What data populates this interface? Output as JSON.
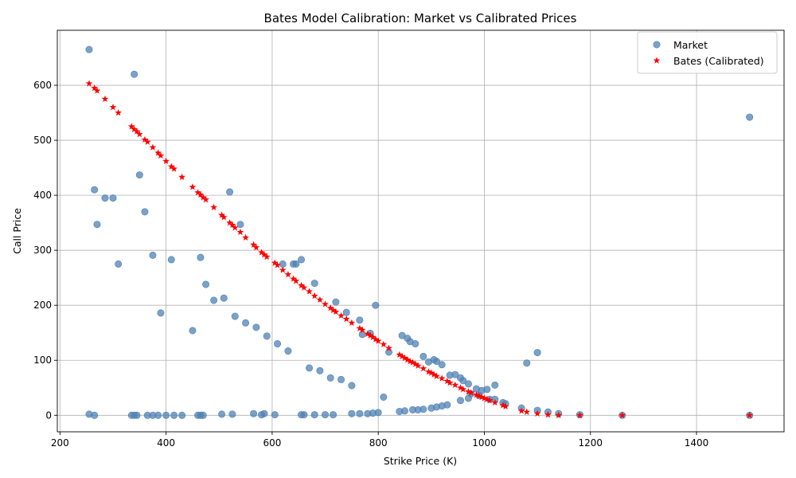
{
  "chart_data": {
    "type": "scatter",
    "title": "Bates Model Calibration: Market vs Calibrated Prices",
    "xlabel": "Strike Price (K)",
    "ylabel": "Call Price",
    "xlim": [
      195,
      1565
    ],
    "ylim": [
      -30,
      700
    ],
    "xticks": [
      200,
      400,
      600,
      800,
      1000,
      1200,
      1400
    ],
    "yticks": [
      0,
      100,
      200,
      300,
      400,
      500,
      600
    ],
    "grid": true,
    "legend_position": "upper-right",
    "series": [
      {
        "name": "Market",
        "marker": "circle",
        "color": "#4f81b4",
        "points": [
          [
            255,
            665
          ],
          [
            340,
            620
          ],
          [
            1500,
            542
          ],
          [
            350,
            437
          ],
          [
            265,
            410
          ],
          [
            520,
            406
          ],
          [
            285,
            395
          ],
          [
            300,
            395
          ],
          [
            360,
            370
          ],
          [
            270,
            347
          ],
          [
            540,
            347
          ],
          [
            375,
            291
          ],
          [
            465,
            287
          ],
          [
            410,
            283
          ],
          [
            655,
            283
          ],
          [
            310,
            275
          ],
          [
            620,
            275
          ],
          [
            640,
            275
          ],
          [
            645,
            275
          ],
          [
            680,
            240
          ],
          [
            475,
            238
          ],
          [
            509,
            213
          ],
          [
            490,
            209
          ],
          [
            720,
            206
          ],
          [
            795,
            200
          ],
          [
            740,
            187
          ],
          [
            390,
            186
          ],
          [
            530,
            180
          ],
          [
            765,
            173
          ],
          [
            550,
            168
          ],
          [
            570,
            160
          ],
          [
            450,
            154
          ],
          [
            785,
            149
          ],
          [
            770,
            147
          ],
          [
            845,
            145
          ],
          [
            590,
            144
          ],
          [
            855,
            140
          ],
          [
            860,
            134
          ],
          [
            610,
            130
          ],
          [
            870,
            130
          ],
          [
            630,
            117
          ],
          [
            820,
            115
          ],
          [
            1100,
            114
          ],
          [
            885,
            107
          ],
          [
            905,
            101
          ],
          [
            895,
            97
          ],
          [
            910,
            98
          ],
          [
            1080,
            95
          ],
          [
            920,
            92
          ],
          [
            670,
            86
          ],
          [
            690,
            81
          ],
          [
            945,
            74
          ],
          [
            935,
            73
          ],
          [
            955,
            68
          ],
          [
            710,
            68
          ],
          [
            730,
            65
          ],
          [
            960,
            63
          ],
          [
            970,
            57
          ],
          [
            1020,
            55
          ],
          [
            750,
            54
          ],
          [
            985,
            48
          ],
          [
            1005,
            47
          ],
          [
            995,
            45
          ],
          [
            975,
            39
          ],
          [
            990,
            36
          ],
          [
            810,
            33
          ],
          [
            970,
            31
          ],
          [
            1010,
            29
          ],
          [
            1020,
            29
          ],
          [
            955,
            27
          ],
          [
            1035,
            23
          ],
          [
            1040,
            21
          ],
          [
            930,
            19
          ],
          [
            920,
            17
          ],
          [
            910,
            15
          ],
          [
            1070,
            13
          ],
          [
            900,
            13
          ],
          [
            885,
            11
          ],
          [
            875,
            10
          ],
          [
            865,
            10
          ],
          [
            850,
            8
          ],
          [
            840,
            7
          ],
          [
            1100,
            9
          ],
          [
            1120,
            6
          ],
          [
            800,
            5
          ],
          [
            790,
            4
          ],
          [
            780,
            3
          ],
          [
            765,
            3
          ],
          [
            750,
            3
          ],
          [
            1140,
            3
          ],
          [
            565,
            3
          ],
          [
            585,
            3
          ],
          [
            505,
            2
          ],
          [
            525,
            2
          ],
          [
            580,
            1
          ],
          [
            605,
            1
          ],
          [
            655,
            1
          ],
          [
            660,
            1
          ],
          [
            680,
            1
          ],
          [
            700,
            1
          ],
          [
            715,
            1
          ],
          [
            1180,
            1
          ],
          [
            1260,
            0
          ],
          [
            255,
            2
          ],
          [
            265,
            0
          ],
          [
            335,
            0
          ],
          [
            340,
            0
          ],
          [
            345,
            0
          ],
          [
            365,
            0
          ],
          [
            375,
            0
          ],
          [
            385,
            0
          ],
          [
            400,
            0
          ],
          [
            415,
            0
          ],
          [
            430,
            0
          ],
          [
            460,
            0
          ],
          [
            465,
            0
          ],
          [
            470,
            0
          ],
          [
            1500,
            0
          ]
        ]
      },
      {
        "name": "Bates (Calibrated)",
        "marker": "star",
        "color": "#ff0000",
        "points": [
          [
            255,
            603
          ],
          [
            265,
            595
          ],
          [
            270,
            590
          ],
          [
            285,
            575
          ],
          [
            300,
            560
          ],
          [
            310,
            550
          ],
          [
            335,
            525
          ],
          [
            340,
            520
          ],
          [
            345,
            516
          ],
          [
            350,
            511
          ],
          [
            360,
            501
          ],
          [
            365,
            497
          ],
          [
            375,
            487
          ],
          [
            385,
            477
          ],
          [
            390,
            472
          ],
          [
            400,
            462
          ],
          [
            410,
            452
          ],
          [
            415,
            448
          ],
          [
            430,
            433
          ],
          [
            450,
            415
          ],
          [
            460,
            405
          ],
          [
            465,
            401
          ],
          [
            470,
            396
          ],
          [
            475,
            392
          ],
          [
            490,
            378
          ],
          [
            505,
            364
          ],
          [
            509,
            360
          ],
          [
            520,
            350
          ],
          [
            525,
            346
          ],
          [
            530,
            341
          ],
          [
            540,
            333
          ],
          [
            550,
            323
          ],
          [
            565,
            310
          ],
          [
            570,
            305
          ],
          [
            580,
            296
          ],
          [
            585,
            292
          ],
          [
            590,
            288
          ],
          [
            605,
            277
          ],
          [
            610,
            273
          ],
          [
            620,
            264
          ],
          [
            630,
            256
          ],
          [
            640,
            248
          ],
          [
            645,
            244
          ],
          [
            655,
            236
          ],
          [
            660,
            232
          ],
          [
            670,
            225
          ],
          [
            680,
            217
          ],
          [
            690,
            210
          ],
          [
            700,
            202
          ],
          [
            710,
            195
          ],
          [
            715,
            191
          ],
          [
            720,
            188
          ],
          [
            730,
            181
          ],
          [
            740,
            175
          ],
          [
            750,
            168
          ],
          [
            765,
            158
          ],
          [
            770,
            155
          ],
          [
            780,
            148
          ],
          [
            785,
            145
          ],
          [
            790,
            142
          ],
          [
            795,
            138
          ],
          [
            800,
            135
          ],
          [
            810,
            129
          ],
          [
            820,
            122
          ],
          [
            840,
            110
          ],
          [
            845,
            107
          ],
          [
            850,
            104
          ],
          [
            855,
            101
          ],
          [
            860,
            98
          ],
          [
            865,
            96
          ],
          [
            870,
            93
          ],
          [
            875,
            90
          ],
          [
            885,
            85
          ],
          [
            895,
            79
          ],
          [
            900,
            77
          ],
          [
            905,
            74
          ],
          [
            910,
            71
          ],
          [
            920,
            67
          ],
          [
            930,
            62
          ],
          [
            935,
            59
          ],
          [
            945,
            55
          ],
          [
            955,
            50
          ],
          [
            960,
            47
          ],
          [
            970,
            43
          ],
          [
            975,
            41
          ],
          [
            985,
            37
          ],
          [
            990,
            35
          ],
          [
            995,
            33
          ],
          [
            1000,
            31
          ],
          [
            1005,
            29
          ],
          [
            1010,
            27
          ],
          [
            1020,
            23
          ],
          [
            1035,
            18
          ],
          [
            1040,
            16
          ],
          [
            1070,
            8
          ],
          [
            1080,
            6
          ],
          [
            1100,
            3
          ],
          [
            1120,
            1
          ],
          [
            1140,
            0
          ],
          [
            1180,
            0
          ],
          [
            1260,
            0
          ],
          [
            1500,
            0
          ]
        ]
      }
    ]
  }
}
